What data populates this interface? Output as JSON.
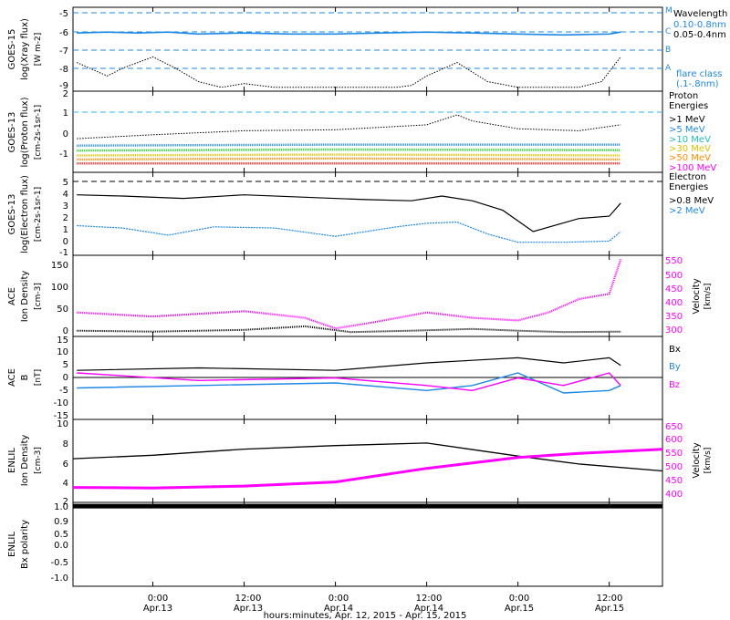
{
  "colors": {
    "black": "#000000",
    "blue": "#1e88e5",
    "cyan_dash": "#29b6f6",
    "magenta": "#ff00ff",
    "orange": "#ff8c00",
    "yellow": "#e0c000",
    "green": "#22cc22",
    "red": "#ff2222"
  },
  "time_axis": {
    "title": "hours:minutes, Apr. 12, 2015 - Apr. 15, 2015",
    "ticks": [
      {
        "h": 24,
        "time": "0:00",
        "day": "Apr.13"
      },
      {
        "h": 36,
        "time": "12:00",
        "day": "Apr.13"
      },
      {
        "h": 48,
        "time": "0:00",
        "day": "Apr.14"
      },
      {
        "h": 60,
        "time": "12:00",
        "day": "Apr.14"
      },
      {
        "h": 72,
        "time": "0:00",
        "day": "Apr.15"
      },
      {
        "h": 84,
        "time": "12:00",
        "day": "Apr.15"
      }
    ],
    "range_hours": [
      13.5,
      91
    ]
  },
  "panels": {
    "xray": {
      "ylabel1": "GOES-15",
      "ylabel2": "log(Xray flux)",
      "ylabel3": "[W m-2]",
      "yticks": [
        "-5",
        "-6",
        "-7",
        "-8",
        "-9"
      ],
      "class_labels": [
        "M",
        "C",
        "B",
        "A"
      ],
      "legend_title": "Wavelength",
      "legend_items": [
        "0.10-0.8nm",
        "0.05-0.4nm"
      ],
      "flare_title": "flare class",
      "flare_range": "(.1-.8nm)"
    },
    "proton": {
      "ylabel1": "GOES-13",
      "ylabel2": "log(Proton flux)",
      "ylabel3": "[cm-2s-1sr-1]",
      "yticks": [
        "2",
        "1",
        "0",
        "-1"
      ],
      "legend_title1": "Proton",
      "legend_title2": "Energies",
      "legend_items": [
        ">1 MeV",
        ">5 MeV",
        ">10 MeV",
        ">30 MeV",
        ">50 MeV",
        ">100 MeV"
      ]
    },
    "electron": {
      "ylabel1": "GOES-13",
      "ylabel2": "log(Electron flux)",
      "ylabel3": "[cm-2s-1sr-1]",
      "yticks": [
        "5",
        "4",
        "3",
        "2",
        "1",
        "0",
        "-1"
      ],
      "legend_title1": "Electron",
      "legend_title2": "Energies",
      "legend_items": [
        ">0.8 MeV",
        ">2 MeV"
      ]
    },
    "ace_plasma": {
      "ylabel1": "ACE",
      "ylabel2": "Ion Density",
      "ylabel3": "[cm-3]",
      "yticks_left": [
        "150",
        "100",
        "50",
        "0"
      ],
      "yticks_right": [
        "550",
        "500",
        "450",
        "400",
        "350",
        "300"
      ],
      "right_label1": "Velocity",
      "right_label2": "[km/s]"
    },
    "ace_mag": {
      "ylabel1": "ACE",
      "ylabel2": "B",
      "ylabel3": "[nT]",
      "yticks": [
        "15",
        "10",
        "5",
        "0",
        "-5",
        "-10",
        "-15"
      ],
      "legend_items": [
        "Bx",
        "By",
        "Bz"
      ]
    },
    "enlil_plasma": {
      "ylabel1": "ENLIL",
      "ylabel2": "Ion Density",
      "ylabel3": "[cm-3]",
      "yticks_left": [
        "10",
        "8",
        "6",
        "4",
        "2"
      ],
      "yticks_right": [
        "650",
        "600",
        "550",
        "500",
        "450",
        "400"
      ],
      "right_label1": "Velocity",
      "right_label2": "[km/s]"
    },
    "enlil_polarity": {
      "ylabel1": "ENLIL",
      "ylabel2": "Bx polarity",
      "yticks": [
        "1.0",
        "0.9",
        "0.5",
        "0.0",
        "-0.5",
        "-1.0"
      ]
    }
  },
  "chart_data": {
    "type": "line",
    "x_unit": "hours since Apr. 12, 2015 0:00",
    "series": [
      {
        "name": "0.10-0.8nm",
        "panel": "xray",
        "x": [
          14,
          18,
          20,
          24,
          27,
          30,
          33,
          36,
          40,
          44,
          48,
          52,
          56,
          58,
          60,
          64,
          68,
          72,
          76,
          80,
          83,
          85.5
        ],
        "values": [
          -7.6,
          -8.3,
          -7.9,
          -7.3,
          -7.9,
          -8.6,
          -8.9,
          -8.7,
          -8.9,
          -8.9,
          -8.9,
          -8.9,
          -8.9,
          -8.8,
          -8.3,
          -7.6,
          -8.6,
          -8.9,
          -8.9,
          -8.9,
          -8.6,
          -7.3
        ]
      },
      {
        "name": "0.05-0.4nm",
        "panel": "xray",
        "x": [
          14,
          18,
          22,
          26,
          30,
          36,
          42,
          48,
          54,
          60,
          66,
          72,
          78,
          84,
          85.5
        ],
        "values": [
          -6.05,
          -6.0,
          -6.05,
          -6.0,
          -6.1,
          -6.05,
          -6.1,
          -6.1,
          -6.05,
          -6.0,
          -6.05,
          -6.1,
          -6.15,
          -6.1,
          -6.0
        ]
      },
      {
        "name": ">1 MeV",
        "panel": "proton",
        "x": [
          14,
          24,
          36,
          48,
          60,
          64,
          66,
          72,
          80,
          85.5
        ],
        "values": [
          -0.2,
          0,
          0.2,
          0.25,
          0.5,
          1.0,
          0.7,
          0.3,
          0.2,
          0.5
        ]
      },
      {
        "name": ">5 MeV",
        "panel": "proton",
        "x": [
          14,
          48,
          85.5
        ],
        "values": [
          -0.55,
          -0.5,
          -0.5
        ]
      },
      {
        "name": ">10 MeV",
        "panel": "proton",
        "x": [
          14,
          48,
          85.5
        ],
        "values": [
          -0.8,
          -0.75,
          -0.78
        ]
      },
      {
        "name": ">30 MeV",
        "panel": "proton",
        "x": [
          14,
          48,
          85.5
        ],
        "values": [
          -1.05,
          -1.0,
          -1.05
        ]
      },
      {
        "name": ">50 MeV",
        "panel": "proton",
        "x": [
          14,
          48,
          85.5
        ],
        "values": [
          -1.25,
          -1.2,
          -1.25
        ]
      },
      {
        "name": ">100 MeV",
        "panel": "proton",
        "x": [
          14,
          48,
          85.5
        ],
        "values": [
          -1.45,
          -1.45,
          -1.45
        ]
      },
      {
        "name": ">0.8 MeV",
        "panel": "electron",
        "x": [
          14,
          20,
          28,
          36,
          44,
          52,
          58,
          62,
          66,
          70,
          74,
          80,
          84,
          85.5
        ],
        "values": [
          3.6,
          3.5,
          3.3,
          3.6,
          3.4,
          3.2,
          3.1,
          3.5,
          3.1,
          2.3,
          0.5,
          1.6,
          1.8,
          2.9
        ]
      },
      {
        "name": ">2 MeV",
        "panel": "electron",
        "x": [
          14,
          20,
          26,
          32,
          40,
          48,
          56,
          60,
          64,
          68,
          72,
          78,
          84,
          85.5
        ],
        "values": [
          1.0,
          0.8,
          0.2,
          0.9,
          0.8,
          0.1,
          0.9,
          1.2,
          1.3,
          0.3,
          -0.4,
          -0.4,
          -0.3,
          0.5
        ]
      },
      {
        "name": "ACE Ion Density",
        "panel": "ace_plasma",
        "x": [
          14,
          24,
          36,
          44,
          50,
          58,
          66,
          72,
          78,
          85.5
        ],
        "values": [
          8,
          6,
          10,
          18,
          5,
          8,
          12,
          8,
          5,
          6
        ]
      },
      {
        "name": "ACE Velocity",
        "panel": "ace_plasma",
        "x": [
          14,
          24,
          36,
          44,
          48,
          52,
          60,
          66,
          72,
          76,
          80,
          84,
          85.5
        ],
        "values": [
          360,
          345,
          365,
          340,
          300,
          318,
          360,
          340,
          330,
          360,
          410,
          430,
          560
        ]
      },
      {
        "name": "Bx",
        "panel": "ace_mag",
        "x": [
          14,
          30,
          48,
          60,
          66,
          72,
          78,
          84,
          85.5
        ],
        "values": [
          3,
          4,
          3,
          6,
          7,
          8,
          6,
          8,
          5
        ]
      },
      {
        "name": "By",
        "panel": "ace_mag",
        "x": [
          14,
          30,
          48,
          60,
          66,
          72,
          78,
          84,
          85.5
        ],
        "values": [
          -4,
          -3,
          -2,
          -5,
          -3,
          2,
          -6,
          -5,
          -3
        ]
      },
      {
        "name": "Bz",
        "panel": "ace_mag",
        "x": [
          14,
          30,
          48,
          60,
          66,
          72,
          78,
          84,
          85.5
        ],
        "values": [
          2,
          -1,
          0,
          -3,
          -5,
          0,
          -3,
          2,
          -3
        ]
      },
      {
        "name": "ENLIL Ion Density",
        "panel": "enlil_plasma",
        "x": [
          13.5,
          24,
          36,
          48,
          60,
          72,
          80,
          91
        ],
        "values": [
          6.0,
          6.4,
          7.1,
          7.5,
          7.8,
          6.3,
          5.4,
          4.6
        ]
      },
      {
        "name": "ENLIL Velocity",
        "panel": "enlil_plasma",
        "x": [
          13.5,
          24,
          36,
          48,
          60,
          72,
          80,
          91
        ],
        "values": [
          420,
          418,
          425,
          440,
          490,
          530,
          545,
          560
        ]
      },
      {
        "name": "Bx polarity",
        "panel": "enlil_polarity",
        "x": [
          13.5,
          91
        ],
        "values": [
          1.0,
          1.0
        ]
      }
    ]
  }
}
